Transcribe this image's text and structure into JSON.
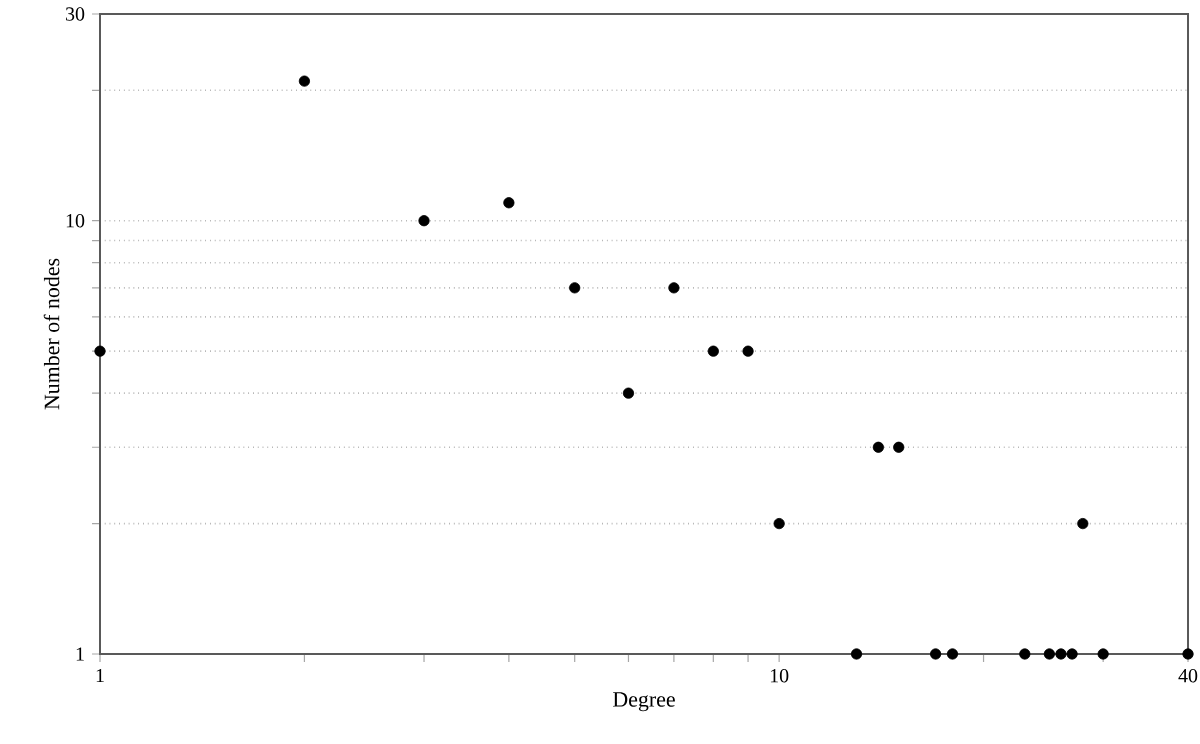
{
  "chart_data": {
    "type": "scatter",
    "xlabel": "Degree",
    "ylabel": "Number of nodes",
    "log": "xy",
    "grid": "y",
    "xlim": [
      1,
      40
    ],
    "ylim": [
      1,
      30
    ],
    "xticks": [
      1,
      {
        "value": 2,
        "label": null
      },
      {
        "value": 3,
        "label": null
      },
      {
        "value": 4,
        "label": null
      },
      {
        "value": 5,
        "label": null
      },
      {
        "value": 6,
        "label": null
      },
      {
        "value": 7,
        "label": null
      },
      {
        "value": 8,
        "label": null
      },
      {
        "value": 9,
        "label": null
      },
      10,
      {
        "value": 20,
        "label": null
      },
      {
        "value": 30,
        "label": null
      },
      40
    ],
    "yticks": [
      1,
      {
        "value": 2,
        "label": null
      },
      {
        "value": 3,
        "label": null
      },
      {
        "value": 4,
        "label": null
      },
      {
        "value": 5,
        "label": null
      },
      {
        "value": 6,
        "label": null
      },
      {
        "value": 7,
        "label": null
      },
      {
        "value": 8,
        "label": null
      },
      {
        "value": 9,
        "label": null
      },
      10,
      {
        "value": 20,
        "label": null
      },
      30
    ],
    "series": [
      {
        "color": "#000000",
        "x": [
          1,
          2,
          3,
          4,
          5,
          6,
          7,
          8,
          9,
          10,
          13,
          14,
          15,
          17,
          18,
          23,
          25,
          26,
          27,
          28,
          30,
          40
        ],
        "values": [
          5,
          21,
          10,
          11,
          7,
          4,
          7,
          5,
          5,
          2,
          1,
          3,
          3,
          1,
          1,
          1,
          1,
          1,
          1,
          2,
          1,
          1
        ]
      }
    ]
  }
}
